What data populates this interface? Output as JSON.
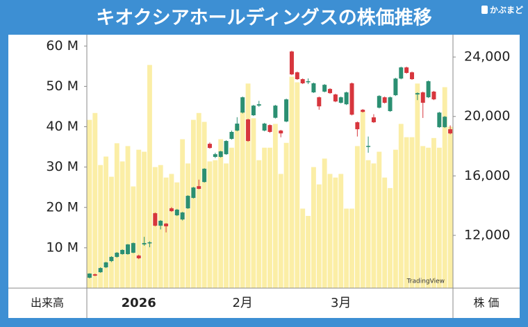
{
  "header": {
    "title": "キオクシアホールディングスの株価推移",
    "logo": "かぶまど"
  },
  "chart_data": {
    "type": "candlestick",
    "watermark": "TradingView",
    "xlabel_left": "出来高",
    "xlabel_right": "株 価",
    "categories": [
      null,
      null,
      null,
      null,
      null,
      null,
      null,
      null,
      null,
      "2026",
      null,
      null,
      null,
      null,
      null,
      null,
      null,
      null,
      null,
      null,
      null,
      null,
      null,
      null,
      null,
      null,
      null,
      null,
      "2月",
      null,
      null,
      null,
      null,
      null,
      null,
      null,
      null,
      null,
      null,
      null,
      null,
      null,
      null,
      null,
      null,
      null,
      "3月",
      null,
      null,
      null,
      null,
      null,
      null,
      null,
      null,
      null,
      null,
      null,
      null,
      null,
      null,
      null,
      null,
      null,
      null,
      null,
      null
    ],
    "open": [
      9150,
      9380,
      9520,
      9850,
      10270,
      10550,
      10740,
      10740,
      10830,
      10640,
      11390,
      11480,
      13490,
      12650,
      12790,
      13820,
      13350,
      13070,
      13820,
      14520,
      15310,
      15590,
      18160,
      17280,
      17280,
      17460,
      18490,
      19050,
      20260,
      19800,
      20080,
      20730,
      19050,
      19420,
      19910,
      19050,
      19660,
      24370,
      22970,
      22510,
      22320,
      21620,
      21290,
      21670,
      21850,
      21480,
      20920,
      20820,
      22230,
      19610,
      20450,
      17980,
      19940,
      20590,
      21290,
      20360,
      21430,
      22550,
      23300,
      22970,
      21480,
      21620,
      21290,
      21670,
      19280,
      19280,
      19140
    ],
    "close": [
      9430,
      9290,
      9800,
      10180,
      10550,
      10830,
      11020,
      11390,
      11480,
      10460,
      11480,
      11530,
      12650,
      12980,
      12610,
      13630,
      13730,
      13540,
      14660,
      15220,
      15130,
      16480,
      17880,
      17460,
      17650,
      18350,
      18960,
      19520,
      21290,
      18350,
      20730,
      20820,
      19520,
      18960,
      20730,
      18860,
      21150,
      22830,
      22510,
      22230,
      22370,
      22230,
      20680,
      22130,
      21570,
      21010,
      21290,
      21620,
      20120,
      19140,
      20310,
      18020,
      19610,
      21380,
      20920,
      21290,
      22550,
      23300,
      22930,
      22510,
      21570,
      20920,
      22370,
      21150,
      20260,
      19980,
      18860
    ],
    "high": [
      9450,
      9430,
      9850,
      10220,
      10600,
      10880,
      11060,
      11420,
      11520,
      10700,
      11900,
      11600,
      13540,
      13030,
      12830,
      13900,
      13780,
      13580,
      14700,
      15260,
      15750,
      16520,
      18250,
      17560,
      17690,
      18400,
      19050,
      19950,
      21340,
      19850,
      20780,
      21050,
      19570,
      19460,
      20780,
      19100,
      21200,
      24420,
      23020,
      22560,
      22560,
      22280,
      21340,
      22180,
      21900,
      21530,
      21340,
      21670,
      22280,
      19660,
      20500,
      18650,
      20150,
      21430,
      21340,
      21340,
      22600,
      23350,
      23350,
      23020,
      21620,
      21670,
      22420,
      21720,
      20310,
      20030,
      19400
    ],
    "low": [
      9100,
      9250,
      9480,
      9800,
      10200,
      10500,
      10700,
      10700,
      10800,
      10400,
      11300,
      11200,
      12600,
      12400,
      12200,
      13580,
      13300,
      13000,
      13780,
      14480,
      15100,
      15550,
      17830,
      17200,
      17230,
      17420,
      18440,
      19000,
      20200,
      18300,
      20030,
      20650,
      19000,
      18900,
      19860,
      18600,
      19610,
      22780,
      22460,
      22180,
      22180,
      21580,
      20450,
      21620,
      21520,
      20960,
      20870,
      20770,
      20070,
      18650,
      20260,
      17560,
      19560,
      20540,
      20870,
      20310,
      21380,
      22500,
      22880,
      22460,
      21100,
      19900,
      21240,
      21100,
      19230,
      19230,
      18800
    ],
    "up_color": "#2b8f72",
    "down_color": "#d7363d",
    "volume": {
      "color": "#fbeea6",
      "values": [
        41.7,
        43.4,
        30.5,
        32.6,
        27.6,
        35.9,
        31.4,
        35.2,
        25.2,
        34.3,
        33.8,
        55.3,
        30,
        30.5,
        27.4,
        28.3,
        26.2,
        36.9,
        30.9,
        41.7,
        43.4,
        41.2,
        31.4,
        31.7,
        36.9,
        30.9,
        34.8,
        40.3,
        43.8,
        50.7,
        42.1,
        31.7,
        34.8,
        34.8,
        40.7,
        28.3,
        36,
        52.4,
        51,
        19.7,
        17.9,
        30,
        25.7,
        32.1,
        28.3,
        27.4,
        28.3,
        19.7,
        19.7,
        35.2,
        43.8,
        31.7,
        30.9,
        33.8,
        27.4,
        24.8,
        34.3,
        40.7,
        37.4,
        37.4,
        50.7,
        35.2,
        34.8,
        37.2,
        34.8,
        49.8,
        40
      ]
    },
    "ylim": [
      0,
      62.8
    ],
    "yticks": [
      {
        "value": 10,
        "label": "10 M"
      },
      {
        "value": 20,
        "label": "20 M"
      },
      {
        "value": 30,
        "label": "30 M"
      },
      {
        "value": 40,
        "label": "40 M"
      },
      {
        "value": 50,
        "label": "50 M"
      },
      {
        "value": 60,
        "label": "60 M"
      }
    ],
    "y2lim": [
      8450,
      25500
    ],
    "y2ticks": [
      {
        "value": 12000,
        "label": "12,000"
      },
      {
        "value": 16000,
        "label": "16,000"
      },
      {
        "value": 20000,
        "label": "20,000"
      },
      {
        "value": 24000,
        "label": "24,000"
      }
    ]
  }
}
